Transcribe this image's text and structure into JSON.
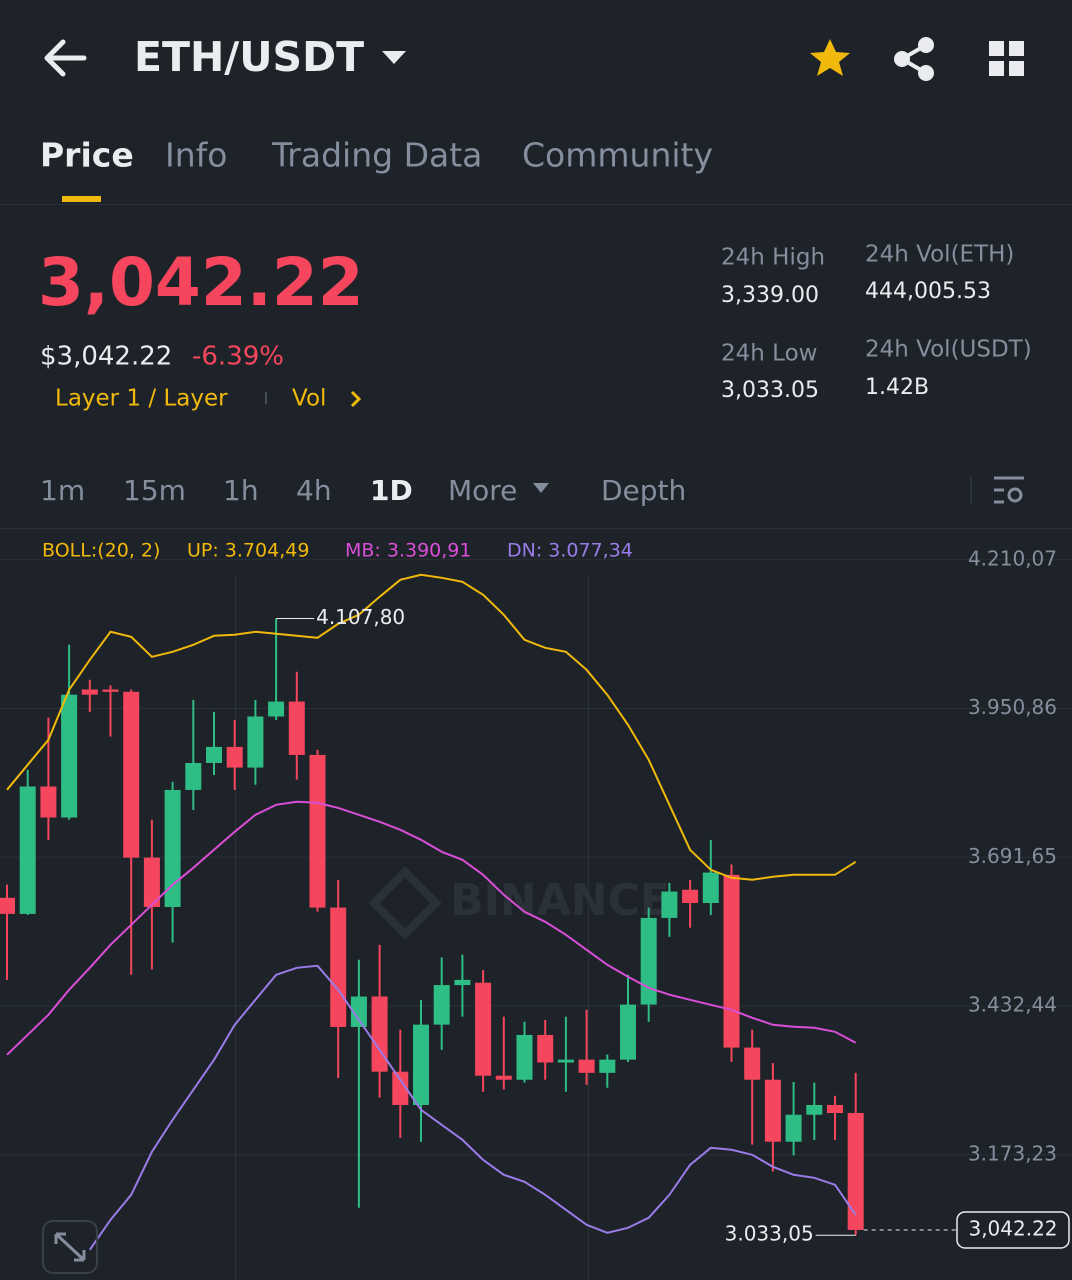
{
  "header": {
    "pair": "ETH/USDT"
  },
  "tabs": [
    "Price",
    "Info",
    "Trading Data",
    "Community"
  ],
  "price": {
    "last": "3,042.22",
    "usd": "$3,042.22",
    "change": "-6.39%",
    "tag": "Layer 1 / Layer",
    "vol": "Vol"
  },
  "stats": [
    {
      "label": "24h High",
      "value": "3,339.00"
    },
    {
      "label": "24h Vol(ETH)",
      "value": "444,005.53"
    },
    {
      "label": "24h Low",
      "value": "3,033.05"
    },
    {
      "label": "24h Vol(USDT)",
      "value": "1.42B"
    }
  ],
  "intervals": [
    "1m",
    "15m",
    "1h",
    "4h",
    "1D",
    "More",
    "Depth"
  ],
  "chart_data": {
    "type": "candlestick",
    "indicator": "BOLL:(20, 2)",
    "watermark": "BINANCE",
    "up_color": "#2ebd85",
    "down_color": "#f6465d",
    "open": [
      3621,
      3593,
      3815,
      3761,
      3984,
      3984,
      3980,
      3691,
      3605,
      3809,
      3856,
      3884,
      3848,
      3937,
      3963,
      3870,
      3604,
      3396,
      3449,
      3318,
      3260,
      3400,
      3469,
      3473,
      3311,
      3304,
      3382,
      3334,
      3339,
      3316,
      3339,
      3435,
      3586,
      3635,
      3612,
      3661,
      3360,
      3304,
      3196,
      3243,
      3260,
      3246
    ],
    "high": [
      3644,
      3844,
      3935,
      4062,
      4001,
      3991,
      3984,
      3757,
      3823,
      3966,
      3945,
      3931,
      3966,
      4107.8,
      4015,
      3879,
      3652,
      3513,
      3539,
      3391,
      3443,
      3517,
      3522,
      3495,
      3414,
      3405,
      3408,
      3414,
      3426,
      3348,
      3487,
      3604,
      3647,
      3652,
      3722,
      3679,
      3391,
      3333,
      3300,
      3299,
      3276,
      3316
    ],
    "low": [
      3478,
      3591,
      3722,
      3757,
      3945,
      3902,
      3487,
      3496,
      3543,
      3774,
      3835,
      3809,
      3818,
      3931,
      3827,
      3597,
      3307,
      3081,
      3273,
      3203,
      3196,
      3356,
      3414,
      3283,
      3287,
      3299,
      3304,
      3283,
      3295,
      3290,
      3335,
      3405,
      3553,
      3569,
      3591,
      3335,
      3191,
      3144,
      3172,
      3199,
      3199,
      3033.05
    ],
    "close": [
      3593,
      3815,
      3761,
      3975,
      3975,
      3980,
      3691,
      3605,
      3809,
      3856,
      3884,
      3848,
      3937,
      3963,
      3870,
      3604,
      3396,
      3449,
      3318,
      3260,
      3400,
      3469,
      3478,
      3311,
      3304,
      3382,
      3334,
      3339,
      3316,
      3339,
      3435,
      3586,
      3632,
      3612,
      3665,
      3360,
      3304,
      3196,
      3243,
      3260,
      3246,
      3042.22
    ],
    "bands": [
      {
        "label": "UP: 3.704,49",
        "color": "#f0b90b",
        "values": [
          3809.2,
          3852.8,
          3896.4,
          3983.5,
          4035.8,
          4084.6,
          4075.9,
          4041.0,
          4049.7,
          4061.9,
          4077.6,
          4079.4,
          4084.6,
          4081.1,
          4077.6,
          4074.1,
          4098.5,
          4114.2,
          4145.6,
          4175.2,
          4183.9,
          4178.7,
          4171.7,
          4149.0,
          4114.2,
          4070.6,
          4056.7,
          4049.7,
          4018.3,
          3974.8,
          3922.5,
          3861.5,
          3783.1,
          3704.7,
          3669.9,
          3655.9,
          3652.4,
          3657.7,
          3661.1,
          3661.1,
          3661.1,
          3683.7
        ]
      },
      {
        "label": "MB: 3.390,91",
        "color": "#d94ed6",
        "values": [
          3347.5,
          3382.3,
          3417.2,
          3460.7,
          3499.1,
          3539.1,
          3574.0,
          3608.8,
          3643.7,
          3673.3,
          3704.7,
          3736.1,
          3765.7,
          3783.1,
          3788.3,
          3786.6,
          3777.8,
          3765.7,
          3753.5,
          3739.5,
          3722.1,
          3701.2,
          3687.3,
          3661.1,
          3626.3,
          3596.6,
          3579.2,
          3556.6,
          3530.4,
          3504.3,
          3483.4,
          3464.2,
          3452.1,
          3443.3,
          3434.6,
          3425.9,
          3412.0,
          3399.7,
          3396.2,
          3394.5,
          3387.5,
          3368.4
        ]
      },
      {
        "label": "DN: 3.077,34",
        "color": "#9a7ce8",
        "values": [
          null,
          null,
          null,
          null,
          3007.6,
          3059.9,
          3103.5,
          3178.4,
          3234.2,
          3286.5,
          3338.7,
          3399.7,
          3443.3,
          3486.9,
          3499.1,
          3502.5,
          3460.7,
          3408.4,
          3356.2,
          3303.9,
          3251.6,
          3225.5,
          3199.3,
          3164.5,
          3138.3,
          3126.1,
          3103.5,
          3077.4,
          3051.2,
          3037.3,
          3046.0,
          3063.4,
          3103.5,
          3155.8,
          3185.4,
          3181.9,
          3173.2,
          3152.3,
          3138.3,
          3133.1,
          3120.9,
          3068.6
        ]
      }
    ],
    "high_label": "4.107,80",
    "low_label": "3.033,05",
    "last_label": "3,042.22",
    "ylim": [
      2955,
      4262
    ],
    "yticks": [
      {
        "value": 4210.07,
        "label": "4.210,07"
      },
      {
        "value": 3950.86,
        "label": "3.950,86"
      },
      {
        "value": 3691.65,
        "label": "3.691,65"
      },
      {
        "value": 3432.44,
        "label": "3.432,44"
      },
      {
        "value": 3173.23,
        "label": "3.173,23"
      }
    ],
    "grid": true
  }
}
